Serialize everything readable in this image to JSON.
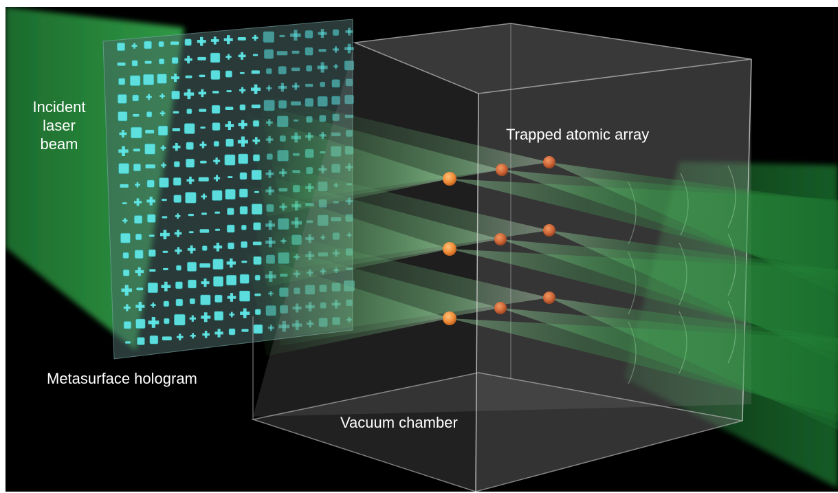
{
  "labels": {
    "incident_line1": "Incident",
    "incident_line2": "laser",
    "incident_line3": "beam",
    "trapped_atomic_array": "Trapped atomic array",
    "metasurface_hologram": "Metasurface hologram",
    "vacuum_chamber": "Vacuum chamber"
  },
  "atoms": {
    "color": "#f0903c",
    "grid_rows": 3,
    "grid_columns": 3
  },
  "colors": {
    "background": "#000000",
    "laser": "#3fcf5a",
    "metasurface_pillar": "#5fe6e6",
    "chamber_edge": "#c8c8c8"
  }
}
